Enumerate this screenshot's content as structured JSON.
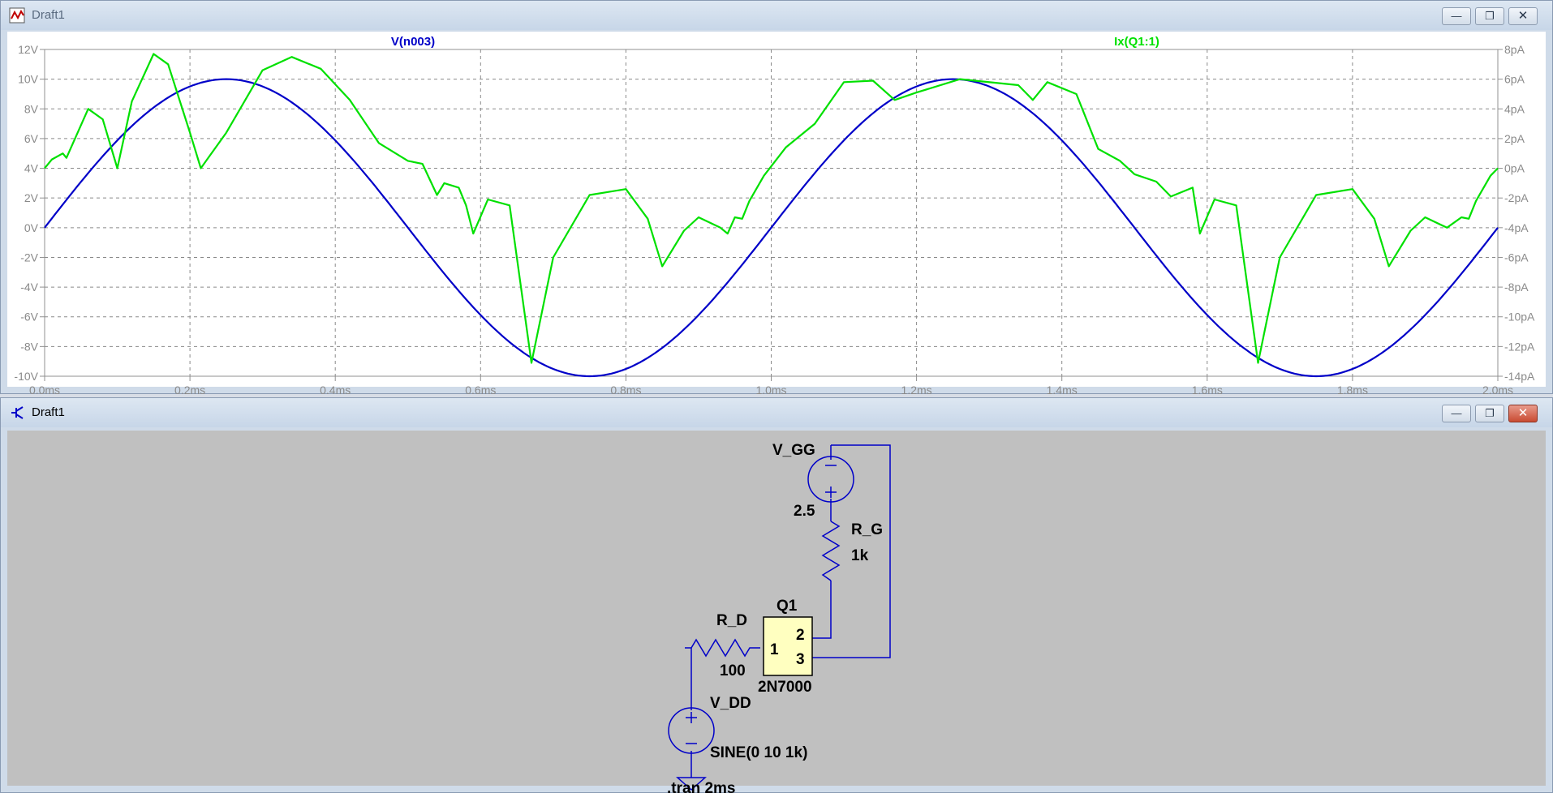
{
  "waveform_window": {
    "title": "Draft1",
    "icon": "waveform-icon",
    "controls": [
      "minimize-icon",
      "restore-icon",
      "close-icon"
    ]
  },
  "schematic_window": {
    "title": "Draft1",
    "icon": "schematic-icon",
    "controls": [
      "minimize-icon",
      "restore-icon",
      "close-icon"
    ]
  },
  "chart_data": {
    "type": "line",
    "x_unit": "ms",
    "xlim": [
      0,
      2.0
    ],
    "x_ticks": [
      "0.0ms",
      "0.2ms",
      "0.4ms",
      "0.6ms",
      "0.8ms",
      "1.0ms",
      "1.2ms",
      "1.4ms",
      "1.6ms",
      "1.8ms",
      "2.0ms"
    ],
    "left_ylim": [
      -10,
      12
    ],
    "left_ticks": [
      "12V",
      "10V",
      "8V",
      "6V",
      "4V",
      "2V",
      "0V",
      "-2V",
      "-4V",
      "-6V",
      "-8V",
      "-10V"
    ],
    "right_ylim": [
      -14,
      8
    ],
    "right_ticks": [
      "8pA",
      "6pA",
      "4pA",
      "2pA",
      "0pA",
      "-2pA",
      "-4pA",
      "-6pA",
      "-8pA",
      "-10pA",
      "-12pA",
      "-14pA"
    ],
    "grid": true,
    "series": [
      {
        "name": "V(n003)",
        "axis": "left",
        "color": "#0000c8",
        "function": "10*sin(2*pi*1k*t)",
        "x": [
          0,
          0.05,
          0.1,
          0.15,
          0.2,
          0.25,
          0.3,
          0.35,
          0.4,
          0.45,
          0.5,
          0.55,
          0.6,
          0.65,
          0.7,
          0.75,
          0.8,
          0.85,
          0.9,
          0.95,
          1.0,
          1.05,
          1.1,
          1.15,
          1.2,
          1.25,
          1.3,
          1.35,
          1.4,
          1.45,
          1.5,
          1.55,
          1.6,
          1.65,
          1.7,
          1.75,
          1.8,
          1.85,
          1.9,
          1.95,
          2.0
        ],
        "values": [
          0,
          3.09,
          5.88,
          8.09,
          9.51,
          10,
          9.51,
          8.09,
          5.88,
          3.09,
          0,
          -3.09,
          -5.88,
          -8.09,
          -9.51,
          -10,
          -9.51,
          -8.09,
          -5.88,
          -3.09,
          0,
          3.09,
          5.88,
          8.09,
          9.51,
          10,
          9.51,
          8.09,
          5.88,
          3.09,
          0,
          -3.09,
          -5.88,
          -8.09,
          -9.51,
          -10,
          -9.51,
          -8.09,
          -5.88,
          -3.09,
          0
        ]
      },
      {
        "name": "Ix(Q1:1)",
        "axis": "right",
        "color": "#00e000",
        "x": [
          0,
          0.01,
          0.025,
          0.03,
          0.06,
          0.08,
          0.1,
          0.12,
          0.15,
          0.17,
          0.2,
          0.215,
          0.25,
          0.3,
          0.34,
          0.38,
          0.42,
          0.46,
          0.5,
          0.52,
          0.54,
          0.55,
          0.57,
          0.58,
          0.59,
          0.61,
          0.64,
          0.67,
          0.7,
          0.75,
          0.8,
          0.83,
          0.85,
          0.88,
          0.9,
          0.93,
          0.94,
          0.95,
          0.96,
          0.97,
          0.99,
          1.02,
          1.06,
          1.1,
          1.14,
          1.17,
          1.2,
          1.26,
          1.34,
          1.36,
          1.38,
          1.42,
          1.45,
          1.48,
          1.5,
          1.53,
          1.55,
          1.58,
          1.59,
          1.61,
          1.64,
          1.67,
          1.7,
          1.75,
          1.8,
          1.83,
          1.85,
          1.88,
          1.9,
          1.93,
          1.95,
          1.96,
          1.97,
          1.99,
          2.0
        ],
        "values": [
          0,
          0.6,
          1.0,
          0.7,
          4.0,
          3.3,
          0,
          4.5,
          7.7,
          7.0,
          2.4,
          0,
          2.4,
          6.6,
          7.5,
          6.7,
          4.6,
          1.7,
          0.5,
          0.3,
          -1.8,
          -1.0,
          -1.3,
          -2.5,
          -4.4,
          -2.1,
          -2.5,
          -13.1,
          -6.0,
          -1.8,
          -1.4,
          -3.4,
          -6.6,
          -4.2,
          -3.3,
          -4.0,
          -4.4,
          -3.3,
          -3.4,
          -2.2,
          -0.5,
          1.4,
          3.0,
          5.8,
          5.9,
          4.6,
          5.1,
          6.0,
          5.6,
          4.6,
          5.8,
          5.0,
          1.3,
          0.5,
          -0.4,
          -0.9,
          -1.9,
          -1.3,
          -4.4,
          -2.1,
          -2.5,
          -13.1,
          -6.0,
          -1.8,
          -1.4,
          -3.4,
          -6.6,
          -4.2,
          -3.3,
          -4.0,
          -3.3,
          -3.4,
          -2.2,
          -0.5,
          0
        ]
      }
    ]
  },
  "schematic": {
    "components": {
      "vgg": {
        "name": "V_GG",
        "value": "2.5"
      },
      "rg": {
        "name": "R_G",
        "value": "1k"
      },
      "rd": {
        "name": "R_D",
        "value": "100"
      },
      "q1": {
        "name": "Q1",
        "model": "2N7000",
        "pin1": "1",
        "pin2": "2",
        "pin3": "3"
      },
      "vdd": {
        "name": "V_DD",
        "value": "SINE(0 10 1k)"
      }
    },
    "directive": ".tran 2ms",
    "colors": {
      "wire": "#0000c8",
      "background": "#c0c0c0",
      "subckt_fill": "#ffffc0"
    }
  }
}
